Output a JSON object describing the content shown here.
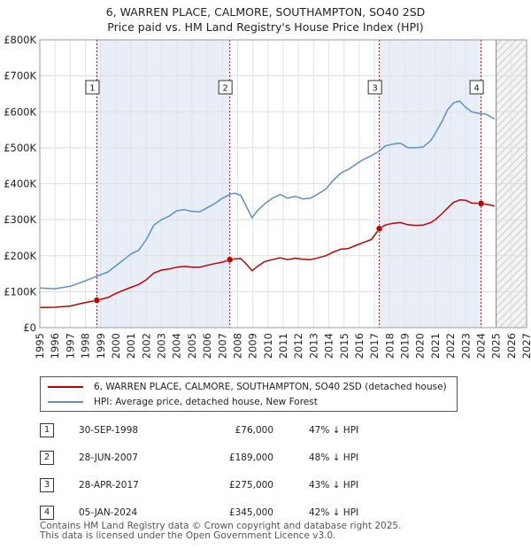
{
  "title_line1": "6, WARREN PLACE, CALMORE, SOUTHAMPTON, SO40 2SD",
  "title_line2": "Price paid vs. HM Land Registry's House Price Index (HPI)",
  "chart_data": {
    "type": "line",
    "x_range": [
      1995,
      2027
    ],
    "y_range": [
      0,
      800000
    ],
    "x_ticks": [
      1995,
      1996,
      1997,
      1998,
      1999,
      2000,
      2001,
      2002,
      2003,
      2004,
      2005,
      2006,
      2007,
      2008,
      2009,
      2010,
      2011,
      2012,
      2013,
      2014,
      2015,
      2016,
      2017,
      2018,
      2019,
      2020,
      2021,
      2022,
      2023,
      2024,
      2025,
      2026,
      2027
    ],
    "y_ticks": [
      {
        "value": 0,
        "label": "£0"
      },
      {
        "value": 100000,
        "label": "£100K"
      },
      {
        "value": 200000,
        "label": "£200K"
      },
      {
        "value": 300000,
        "label": "£300K"
      },
      {
        "value": 400000,
        "label": "£400K"
      },
      {
        "value": 500000,
        "label": "£500K"
      },
      {
        "value": 600000,
        "label": "£600K"
      },
      {
        "value": 700000,
        "label": "£700K"
      },
      {
        "value": 800000,
        "label": "£800K"
      }
    ],
    "colors": {
      "price": "#c00000",
      "hpi": "#5b8fcc",
      "shade": "#e8eef8",
      "vline": "#c00000"
    },
    "forecast_start": 2025.0,
    "series": [
      {
        "name": "6, WARREN PLACE, CALMORE, SOUTHAMPTON, SO40 2SD (detached house)",
        "color": "#c00000",
        "points": [
          [
            1995.0,
            56000
          ],
          [
            1996.0,
            56500
          ],
          [
            1997.0,
            60000
          ],
          [
            1997.8,
            68000
          ],
          [
            1998.75,
            76000
          ],
          [
            1999.5,
            84000
          ],
          [
            2000.0,
            95000
          ],
          [
            2000.5,
            104000
          ],
          [
            2001.0,
            112000
          ],
          [
            2001.5,
            120000
          ],
          [
            2002.0,
            133000
          ],
          [
            2002.5,
            152000
          ],
          [
            2003.0,
            160000
          ],
          [
            2003.5,
            163000
          ],
          [
            2004.0,
            168000
          ],
          [
            2004.5,
            170000
          ],
          [
            2005.0,
            168000
          ],
          [
            2005.5,
            168000
          ],
          [
            2006.0,
            173000
          ],
          [
            2006.5,
            178000
          ],
          [
            2007.0,
            182000
          ],
          [
            2007.49,
            189000
          ],
          [
            2007.8,
            191000
          ],
          [
            2008.2,
            192000
          ],
          [
            2008.6,
            176000
          ],
          [
            2008.95,
            158000
          ],
          [
            2009.3,
            170000
          ],
          [
            2009.8,
            184000
          ],
          [
            2010.3,
            189000
          ],
          [
            2010.8,
            194000
          ],
          [
            2011.3,
            189000
          ],
          [
            2011.8,
            193000
          ],
          [
            2012.3,
            190000
          ],
          [
            2012.8,
            189000
          ],
          [
            2013.3,
            194000
          ],
          [
            2013.8,
            200000
          ],
          [
            2014.3,
            210000
          ],
          [
            2014.8,
            218000
          ],
          [
            2015.3,
            220000
          ],
          [
            2015.8,
            229000
          ],
          [
            2016.3,
            237000
          ],
          [
            2016.8,
            245000
          ],
          [
            2017.32,
            275000
          ],
          [
            2017.7,
            285000
          ],
          [
            2018.2,
            290000
          ],
          [
            2018.7,
            292000
          ],
          [
            2019.2,
            286000
          ],
          [
            2019.7,
            284000
          ],
          [
            2020.2,
            285000
          ],
          [
            2020.7,
            292000
          ],
          [
            2021.0,
            300000
          ],
          [
            2021.4,
            315000
          ],
          [
            2021.8,
            332000
          ],
          [
            2022.2,
            348000
          ],
          [
            2022.6,
            355000
          ],
          [
            2023.0,
            354000
          ],
          [
            2023.4,
            346000
          ],
          [
            2024.01,
            345000
          ],
          [
            2024.5,
            342000
          ],
          [
            2024.9,
            338000
          ]
        ]
      },
      {
        "name": "HPI: Average price, detached house, New Forest",
        "color": "#5b8fcc",
        "points": [
          [
            1995.0,
            110000
          ],
          [
            1996.0,
            108000
          ],
          [
            1997.0,
            115000
          ],
          [
            1997.8,
            127000
          ],
          [
            1998.75,
            143000
          ],
          [
            1999.5,
            155000
          ],
          [
            2000.0,
            172000
          ],
          [
            2000.5,
            188000
          ],
          [
            2001.0,
            205000
          ],
          [
            2001.5,
            215000
          ],
          [
            2002.0,
            245000
          ],
          [
            2002.5,
            285000
          ],
          [
            2003.0,
            300000
          ],
          [
            2003.5,
            310000
          ],
          [
            2004.0,
            325000
          ],
          [
            2004.5,
            328000
          ],
          [
            2005.0,
            323000
          ],
          [
            2005.5,
            322000
          ],
          [
            2006.0,
            333000
          ],
          [
            2006.5,
            345000
          ],
          [
            2007.0,
            360000
          ],
          [
            2007.5,
            370000
          ],
          [
            2007.8,
            374000
          ],
          [
            2008.2,
            368000
          ],
          [
            2008.6,
            335000
          ],
          [
            2008.95,
            305000
          ],
          [
            2009.3,
            325000
          ],
          [
            2009.8,
            345000
          ],
          [
            2010.3,
            360000
          ],
          [
            2010.8,
            370000
          ],
          [
            2011.3,
            360000
          ],
          [
            2011.8,
            365000
          ],
          [
            2012.3,
            358000
          ],
          [
            2012.8,
            360000
          ],
          [
            2013.3,
            372000
          ],
          [
            2013.8,
            385000
          ],
          [
            2014.3,
            410000
          ],
          [
            2014.8,
            430000
          ],
          [
            2015.3,
            440000
          ],
          [
            2015.8,
            455000
          ],
          [
            2016.3,
            468000
          ],
          [
            2016.8,
            478000
          ],
          [
            2017.3,
            490000
          ],
          [
            2017.7,
            505000
          ],
          [
            2018.2,
            510000
          ],
          [
            2018.7,
            513000
          ],
          [
            2019.2,
            500000
          ],
          [
            2019.7,
            500000
          ],
          [
            2020.2,
            502000
          ],
          [
            2020.7,
            520000
          ],
          [
            2021.0,
            540000
          ],
          [
            2021.4,
            570000
          ],
          [
            2021.8,
            605000
          ],
          [
            2022.2,
            625000
          ],
          [
            2022.6,
            630000
          ],
          [
            2023.0,
            612000
          ],
          [
            2023.4,
            600000
          ],
          [
            2023.8,
            596000
          ],
          [
            2024.3,
            594000
          ],
          [
            2024.9,
            580000
          ]
        ]
      }
    ],
    "sales": [
      {
        "id": "1",
        "x": 1998.75,
        "price": 76000
      },
      {
        "id": "2",
        "x": 2007.49,
        "price": 189000
      },
      {
        "id": "3",
        "x": 2017.32,
        "price": 275000
      },
      {
        "id": "4",
        "x": 2024.01,
        "price": 345000
      }
    ],
    "shaded_periods": [
      [
        1998.75,
        2007.49
      ],
      [
        2017.32,
        2024.01
      ]
    ]
  },
  "legend": {
    "price_label": "6, WARREN PLACE, CALMORE, SOUTHAMPTON, SO40 2SD (detached house)",
    "hpi_label": "HPI: Average price, detached house, New Forest"
  },
  "sales_table": [
    {
      "num": "1",
      "date": "30-SEP-1998",
      "price": "£76,000",
      "hpi": "47% ↓ HPI"
    },
    {
      "num": "2",
      "date": "28-JUN-2007",
      "price": "£189,000",
      "hpi": "48% ↓ HPI"
    },
    {
      "num": "3",
      "date": "28-APR-2017",
      "price": "£275,000",
      "hpi": "43% ↓ HPI"
    },
    {
      "num": "4",
      "date": "05-JAN-2024",
      "price": "£345,000",
      "hpi": "42% ↓ HPI"
    }
  ],
  "footer_line1": "Contains HM Land Registry data © Crown copyright and database right 2025.",
  "footer_line2": "This data is licensed under the Open Government Licence v3.0."
}
